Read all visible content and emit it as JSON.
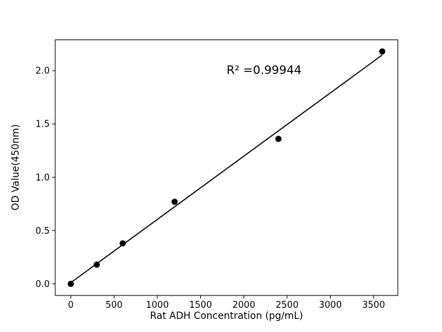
{
  "figure": {
    "background": "#ffffff"
  },
  "chart_data": {
    "type": "scatter",
    "title": "",
    "xlabel": "Rat ADH Concentration (pg/mL)",
    "ylabel": "OD Value(450nm)",
    "x": [
      0,
      300,
      600,
      1200,
      2400,
      3600
    ],
    "y": [
      0.0,
      0.18,
      0.38,
      0.77,
      1.36,
      2.18
    ],
    "xticks": [
      0,
      500,
      1000,
      1500,
      2000,
      2500,
      3000,
      3500
    ],
    "yticks": [
      0.0,
      0.5,
      1.0,
      1.5,
      2.0
    ],
    "xlim": [
      -180,
      3780
    ],
    "ylim": [
      -0.109,
      2.289
    ],
    "fit": {
      "slope": 0.0005932,
      "intercept": 0.0114,
      "line_x": [
        0,
        3600
      ]
    },
    "annotation": {
      "text": "R² =0.99944",
      "x": 1800,
      "y": 2.0
    },
    "marker_color": "#000000",
    "line_color": "#000000",
    "grid": false,
    "legend": "none"
  }
}
